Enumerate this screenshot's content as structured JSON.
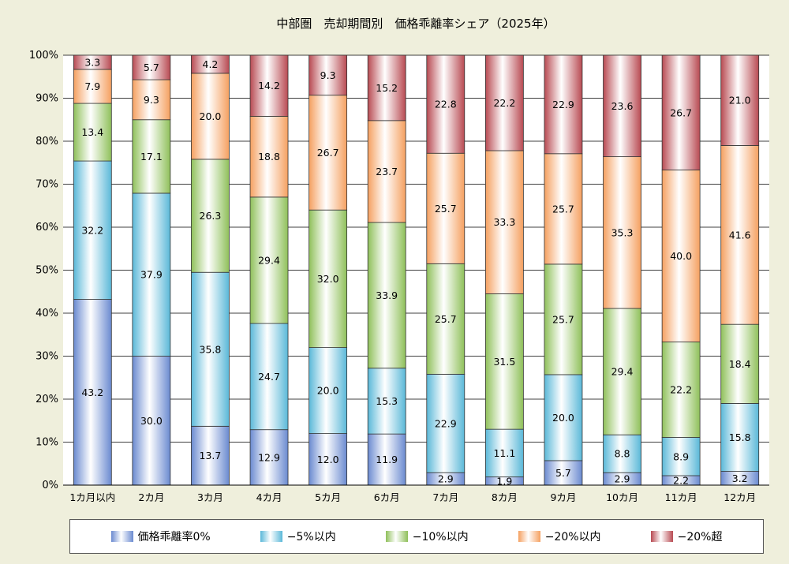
{
  "chart_data": {
    "type": "bar",
    "stacked": true,
    "title": "中部圏　売却期間別　価格乖離率シェア（2025年）",
    "categories": [
      "1カ月以内",
      "2カ月",
      "3カ月",
      "4カ月",
      "5カ月",
      "6カ月",
      "7カ月",
      "8カ月",
      "9カ月",
      "10カ月",
      "11カ月",
      "12カ月"
    ],
    "yticks": [
      "0%",
      "10%",
      "20%",
      "30%",
      "40%",
      "50%",
      "60%",
      "70%",
      "80%",
      "90%",
      "100%"
    ],
    "ylim": [
      0,
      100
    ],
    "series": [
      {
        "name": "価格乖離率0%",
        "color": "#6a8ad0",
        "labels": [
          "43.2",
          "30.0",
          "13.7",
          "12.9",
          "12.0",
          "11.9",
          "2.9",
          "1.9",
          "5.7",
          "2.9",
          "2.2",
          "3.2"
        ],
        "values": [
          43.2,
          30.0,
          13.7,
          12.9,
          12.0,
          11.9,
          2.9,
          1.9,
          5.7,
          2.9,
          2.2,
          3.2
        ]
      },
      {
        "name": "−5%以内",
        "color": "#5ab8d8",
        "labels": [
          "32.2",
          "37.9",
          "35.8",
          "24.7",
          "20.0",
          "15.3",
          "22.9",
          "11.1",
          "20.0",
          "8.8",
          "8.9",
          "15.8"
        ],
        "values": [
          32.2,
          37.9,
          35.8,
          24.7,
          20.0,
          15.3,
          22.9,
          11.1,
          20.0,
          8.8,
          8.9,
          15.8
        ]
      },
      {
        "name": "−10%以内",
        "color": "#8fc05a",
        "labels": [
          "13.4",
          "17.1",
          "26.3",
          "29.4",
          "32.0",
          "33.9",
          "25.7",
          "31.5",
          "25.7",
          "29.4",
          "22.2",
          "18.4"
        ],
        "values": [
          13.4,
          17.1,
          26.3,
          29.4,
          32.0,
          33.9,
          25.7,
          31.5,
          25.7,
          29.4,
          22.2,
          18.4
        ]
      },
      {
        "name": "−20%以内",
        "color": "#f5a060",
        "labels": [
          "7.9",
          "9.3",
          "20.0",
          "18.8",
          "26.7",
          "23.7",
          "25.7",
          "33.3",
          "25.7",
          "35.3",
          "40.0",
          "41.6"
        ],
        "values": [
          7.9,
          9.3,
          20.0,
          18.8,
          26.7,
          23.7,
          25.7,
          33.3,
          25.7,
          35.3,
          40.0,
          41.6
        ]
      },
      {
        "name": "−20%超",
        "color": "#b84a52",
        "labels": [
          "3.3",
          "5.7",
          "4.2",
          "14.2",
          "9.3",
          "15.2",
          "22.8",
          "22.2",
          "22.9",
          "23.6",
          "26.7",
          "21.0"
        ],
        "values": [
          3.3,
          5.7,
          4.2,
          14.2,
          9.3,
          15.2,
          22.8,
          22.2,
          22.9,
          23.6,
          26.7,
          21.0
        ]
      }
    ]
  }
}
